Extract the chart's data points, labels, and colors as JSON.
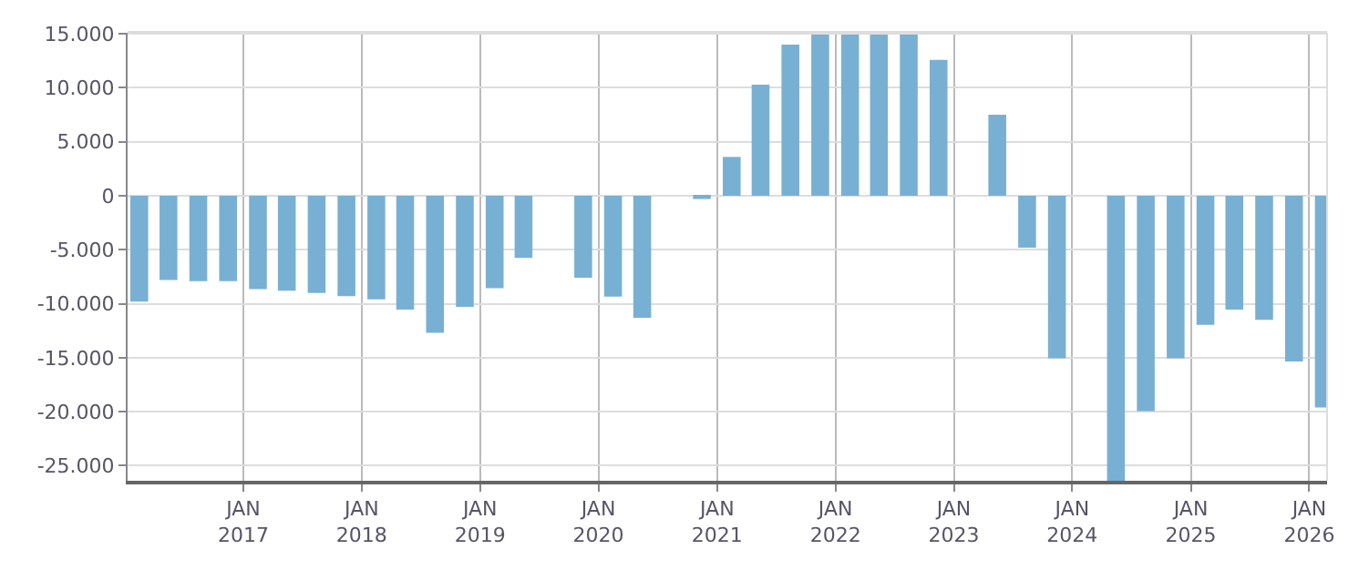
{
  "chart_data": {
    "type": "bar",
    "color": "#78b0d3",
    "x": [
      "2016-02-15",
      "2016-05-15",
      "2016-08-15",
      "2016-11-15",
      "2017-02-15",
      "2017-05-15",
      "2017-08-15",
      "2017-11-15",
      "2018-02-15",
      "2018-05-15",
      "2018-08-15",
      "2018-11-15",
      "2019-02-15",
      "2019-05-15",
      "2019-08-15",
      "2019-11-15",
      "2020-02-15",
      "2020-05-15",
      "2020-08-15",
      "2020-11-15",
      "2021-02-15",
      "2021-05-15",
      "2021-08-15",
      "2021-11-15",
      "2022-02-15",
      "2022-05-15",
      "2022-08-15",
      "2022-11-15",
      "2023-02-15",
      "2023-05-15",
      "2023-08-15",
      "2023-11-15",
      "2024-02-15",
      "2024-05-15",
      "2024-08-15",
      "2024-11-15",
      "2025-02-15",
      "2025-05-15",
      "2025-08-15",
      "2025-11-15",
      "2026-02-15"
    ],
    "values": [
      -9800,
      -7800,
      -7900,
      -7900,
      -8650,
      -8800,
      -9000,
      -9300,
      -9600,
      -10550,
      -12700,
      -10300,
      -8550,
      -5750,
      null,
      -7600,
      -9350,
      -11300,
      null,
      -300,
      3600,
      10300,
      14000,
      14950,
      15000,
      15000,
      14950,
      12600,
      null,
      7500,
      -4800,
      -15050,
      null,
      -26400,
      -19950,
      -15050,
      -11950,
      -10550,
      -11500,
      -15350,
      -19600
    ],
    "xlim": [
      "2016-01-10",
      "2026-02-25"
    ],
    "xticks": [
      {
        "value": "2017-01-01",
        "label": "JAN\n2017"
      },
      {
        "value": "2018-01-01",
        "label": "JAN\n2018"
      },
      {
        "value": "2019-01-01",
        "label": "JAN\n2019"
      },
      {
        "value": "2020-01-01",
        "label": "JAN\n2020"
      },
      {
        "value": "2021-01-01",
        "label": "JAN\n2021"
      },
      {
        "value": "2022-01-01",
        "label": "JAN\n2022"
      },
      {
        "value": "2023-01-01",
        "label": "JAN\n2023"
      },
      {
        "value": "2024-01-01",
        "label": "JAN\n2024"
      },
      {
        "value": "2025-01-01",
        "label": "JAN\n2025"
      },
      {
        "value": "2026-01-01",
        "label": "JAN\n2026"
      }
    ],
    "ylim": [
      -26400,
      15100
    ],
    "yticks": [
      {
        "value": -25000,
        "label": "-25.000"
      },
      {
        "value": -20000,
        "label": "-20.000"
      },
      {
        "value": -15000,
        "label": "-15.000"
      },
      {
        "value": -10000,
        "label": "-10.000"
      },
      {
        "value": -5000,
        "label": "-5.000"
      },
      0,
      {
        "value": 5000,
        "label": "5.000"
      },
      {
        "value": 10000,
        "label": "10.000"
      },
      {
        "value": 15000,
        "label": "15.000"
      }
    ],
    "grid": true
  }
}
